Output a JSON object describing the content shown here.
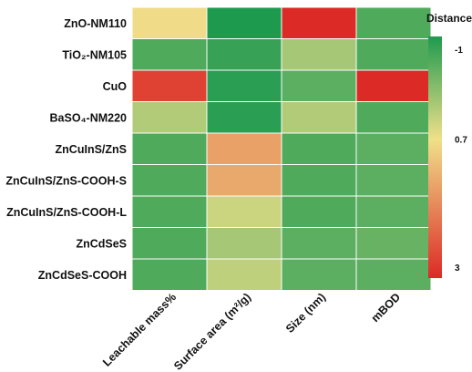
{
  "chart_data": {
    "type": "heatmap",
    "rows": [
      "ZnO-NM110",
      "TiO₂-NM105",
      "CuO",
      "BaSO₄-NM220",
      "ZnCuInS/ZnS",
      "ZnCuInS/ZnS-COOH-S",
      "ZnCuInS/ZnS-COOH-L",
      "ZnCdSeS",
      "ZnCdSeS-COOH"
    ],
    "columns": [
      "Leachable mass%",
      "Surface area (m²/g)",
      "Size (nm)",
      "mBOD"
    ],
    "values": [
      [
        0.75,
        -1.0,
        3.0,
        -0.6
      ],
      [
        -0.6,
        -0.8,
        0.1,
        -0.6
      ],
      [
        2.7,
        -0.9,
        -0.5,
        3.0
      ],
      [
        0.2,
        -0.9,
        0.2,
        -0.6
      ],
      [
        -0.6,
        1.5,
        -0.6,
        -0.5
      ],
      [
        -0.6,
        1.4,
        -0.6,
        -0.5
      ],
      [
        -0.6,
        0.4,
        -0.6,
        -0.5
      ],
      [
        -0.6,
        0.1,
        -0.5,
        -0.4
      ],
      [
        -0.6,
        0.3,
        -0.5,
        -0.5
      ]
    ],
    "legend": {
      "title": "Distance",
      "ticks": [
        "-1",
        "0.7",
        "3"
      ],
      "tick_values": [
        -1,
        0.7,
        3
      ],
      "range": [
        -1,
        3
      ],
      "placement": "right"
    },
    "colors": {
      "low": "#1e9a4e",
      "mid": "#f0e08a",
      "high": "#dc2a26",
      "cell_border": "#ffffff"
    }
  }
}
